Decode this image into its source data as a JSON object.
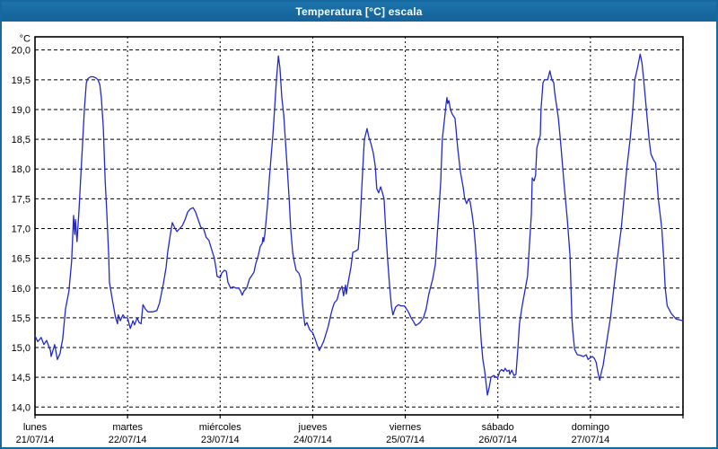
{
  "window_title": "Temperatura [°C] escala",
  "colors": {
    "titlebar": "#17689f",
    "line": "#2328cc",
    "grid": "#000000",
    "background": "#ffffff"
  },
  "chart_data": {
    "type": "line",
    "title": "Temperatura [°C] escala",
    "ylabel": "°C",
    "unit_label": "°C",
    "ylim": [
      14.0,
      20.0
    ],
    "ytick_step": 0.5,
    "ytick_labels": [
      "14,0",
      "14,5",
      "15,0",
      "15,5",
      "16,0",
      "16,5",
      "17,0",
      "17,5",
      "18,0",
      "18,5",
      "19,0",
      "19,5",
      "20,0"
    ],
    "grid": true,
    "legend_position": "none",
    "x_unit": "hours",
    "x_range_hours": [
      0,
      168
    ],
    "days": [
      {
        "name": "lunes",
        "date": "21/07/14"
      },
      {
        "name": "martes",
        "date": "22/07/14"
      },
      {
        "name": "miércoles",
        "date": "23/07/14"
      },
      {
        "name": "jueves",
        "date": "24/07/14"
      },
      {
        "name": "viernes",
        "date": "25/07/14"
      },
      {
        "name": "sábado",
        "date": "26/07/14"
      },
      {
        "name": "domingo",
        "date": "27/07/14"
      }
    ],
    "series": [
      {
        "name": "Temperatura",
        "points": [
          [
            0,
            15.2
          ],
          [
            0.7,
            15.1
          ],
          [
            1.6,
            15.17
          ],
          [
            2.3,
            15.05
          ],
          [
            3,
            15.12
          ],
          [
            4,
            14.95
          ],
          [
            4.2,
            14.85
          ],
          [
            5.1,
            15.05
          ],
          [
            5.8,
            14.8
          ],
          [
            6.5,
            14.9
          ],
          [
            7.2,
            15.15
          ],
          [
            7.9,
            15.65
          ],
          [
            8.8,
            15.95
          ],
          [
            9.5,
            16.45
          ],
          [
            10,
            17.22
          ],
          [
            10.3,
            16.9
          ],
          [
            10.5,
            17.15
          ],
          [
            10.9,
            16.78
          ],
          [
            11.4,
            17.3
          ],
          [
            11.9,
            17.9
          ],
          [
            12.3,
            18.4
          ],
          [
            12.8,
            19.0
          ],
          [
            13.3,
            19.45
          ],
          [
            13.7,
            19.52
          ],
          [
            14.4,
            19.55
          ],
          [
            15.1,
            19.55
          ],
          [
            15.8,
            19.53
          ],
          [
            16.3,
            19.5
          ],
          [
            16.8,
            19.42
          ],
          [
            17.2,
            19.2
          ],
          [
            17.7,
            18.7
          ],
          [
            18.2,
            17.8
          ],
          [
            18.6,
            17.3
          ],
          [
            19.1,
            16.55
          ],
          [
            19.3,
            16.1
          ],
          [
            19.8,
            15.9
          ],
          [
            20.2,
            15.75
          ],
          [
            20.9,
            15.5
          ],
          [
            21.4,
            15.4
          ],
          [
            21.6,
            15.55
          ],
          [
            22.1,
            15.45
          ],
          [
            22.8,
            15.55
          ],
          [
            23.3,
            15.5
          ],
          [
            24,
            15.5
          ],
          [
            24.7,
            15.32
          ],
          [
            25.4,
            15.45
          ],
          [
            25.8,
            15.38
          ],
          [
            26.5,
            15.5
          ],
          [
            27,
            15.42
          ],
          [
            27.5,
            15.4
          ],
          [
            28,
            15.72
          ],
          [
            28.6,
            15.65
          ],
          [
            29.3,
            15.6
          ],
          [
            30.5,
            15.6
          ],
          [
            31.6,
            15.62
          ],
          [
            32.3,
            15.75
          ],
          [
            33.3,
            16.08
          ],
          [
            34,
            16.35
          ],
          [
            34.4,
            16.6
          ],
          [
            35.1,
            16.9
          ],
          [
            35.6,
            17.1
          ],
          [
            36.3,
            17.0
          ],
          [
            36.8,
            16.95
          ],
          [
            37.5,
            17.0
          ],
          [
            38.2,
            17.05
          ],
          [
            38.9,
            17.15
          ],
          [
            39.6,
            17.28
          ],
          [
            40.3,
            17.33
          ],
          [
            41,
            17.35
          ],
          [
            41.6,
            17.28
          ],
          [
            42.3,
            17.15
          ],
          [
            43,
            17.02
          ],
          [
            43.7,
            17.0
          ],
          [
            44.4,
            16.85
          ],
          [
            45.1,
            16.8
          ],
          [
            45.8,
            16.65
          ],
          [
            46.5,
            16.5
          ],
          [
            47,
            16.3
          ],
          [
            47.2,
            16.2
          ],
          [
            48,
            16.17
          ],
          [
            48.4,
            16.25
          ],
          [
            49.1,
            16.3
          ],
          [
            49.6,
            16.28
          ],
          [
            50,
            16.1
          ],
          [
            50.7,
            16.0
          ],
          [
            51.4,
            16.02
          ],
          [
            52.1,
            16.0
          ],
          [
            52.8,
            16.0
          ],
          [
            53.3,
            15.95
          ],
          [
            53.7,
            15.88
          ],
          [
            54.2,
            15.95
          ],
          [
            54.9,
            16.0
          ],
          [
            55.6,
            16.15
          ],
          [
            56.3,
            16.22
          ],
          [
            56.8,
            16.27
          ],
          [
            57.2,
            16.4
          ],
          [
            57.9,
            16.55
          ],
          [
            58.4,
            16.7
          ],
          [
            58.9,
            16.75
          ],
          [
            59.1,
            16.85
          ],
          [
            59.3,
            16.78
          ],
          [
            59.6,
            16.9
          ],
          [
            60.3,
            17.4
          ],
          [
            60.7,
            17.8
          ],
          [
            61.2,
            18.2
          ],
          [
            61.7,
            18.6
          ],
          [
            62.1,
            19.0
          ],
          [
            62.6,
            19.5
          ],
          [
            63.1,
            19.9
          ],
          [
            63.5,
            19.7
          ],
          [
            64,
            19.2
          ],
          [
            64.5,
            18.9
          ],
          [
            64.9,
            18.5
          ],
          [
            65.4,
            18.0
          ],
          [
            65.9,
            17.5
          ],
          [
            66.3,
            17.0
          ],
          [
            66.8,
            16.6
          ],
          [
            67.2,
            16.45
          ],
          [
            67.7,
            16.3
          ],
          [
            68.4,
            16.25
          ],
          [
            68.9,
            16.16
          ],
          [
            69.3,
            15.77
          ],
          [
            69.6,
            15.57
          ],
          [
            70,
            15.37
          ],
          [
            70.5,
            15.42
          ],
          [
            71.2,
            15.3
          ],
          [
            72,
            15.25
          ],
          [
            72.6,
            15.15
          ],
          [
            73.1,
            15.05
          ],
          [
            73.7,
            14.95
          ],
          [
            74.1,
            15.0
          ],
          [
            74.8,
            15.1
          ],
          [
            75.3,
            15.2
          ],
          [
            76,
            15.35
          ],
          [
            76.7,
            15.55
          ],
          [
            77.1,
            15.65
          ],
          [
            77.6,
            15.75
          ],
          [
            78.3,
            15.8
          ],
          [
            78.9,
            15.95
          ],
          [
            79.6,
            16.03
          ],
          [
            80,
            15.87
          ],
          [
            80.5,
            16.05
          ],
          [
            80.7,
            15.9
          ],
          [
            81.2,
            16.1
          ],
          [
            81.9,
            16.35
          ],
          [
            82.4,
            16.6
          ],
          [
            83.1,
            16.62
          ],
          [
            83.8,
            16.65
          ],
          [
            84.2,
            17.0
          ],
          [
            84.7,
            17.65
          ],
          [
            85.1,
            18.15
          ],
          [
            85.4,
            18.5
          ],
          [
            86.1,
            18.68
          ],
          [
            86.5,
            18.55
          ],
          [
            87,
            18.45
          ],
          [
            87.7,
            18.27
          ],
          [
            88.2,
            18.05
          ],
          [
            88.6,
            17.67
          ],
          [
            89.1,
            17.6
          ],
          [
            89.6,
            17.7
          ],
          [
            90,
            17.62
          ],
          [
            90.5,
            17.5
          ],
          [
            90.9,
            17.0
          ],
          [
            91.4,
            16.5
          ],
          [
            91.9,
            16.05
          ],
          [
            92.4,
            15.7
          ],
          [
            92.8,
            15.55
          ],
          [
            93.5,
            15.68
          ],
          [
            94.2,
            15.72
          ],
          [
            94.9,
            15.7
          ],
          [
            95.7,
            15.7
          ],
          [
            96,
            15.68
          ],
          [
            96.8,
            15.6
          ],
          [
            97.5,
            15.5
          ],
          [
            98,
            15.45
          ],
          [
            98.7,
            15.37
          ],
          [
            99.4,
            15.4
          ],
          [
            99.8,
            15.42
          ],
          [
            100.7,
            15.5
          ],
          [
            101.4,
            15.65
          ],
          [
            102.1,
            15.9
          ],
          [
            103.1,
            16.15
          ],
          [
            103.8,
            16.4
          ],
          [
            104.2,
            16.8
          ],
          [
            104.7,
            17.3
          ],
          [
            105.2,
            17.8
          ],
          [
            105.6,
            18.5
          ],
          [
            106.1,
            18.8
          ],
          [
            106.6,
            19.1
          ],
          [
            106.8,
            19.2
          ],
          [
            107,
            19.1
          ],
          [
            107.3,
            19.15
          ],
          [
            107.7,
            19.0
          ],
          [
            108.2,
            18.92
          ],
          [
            108.9,
            18.85
          ],
          [
            109.6,
            18.35
          ],
          [
            110.3,
            17.95
          ],
          [
            111,
            17.7
          ],
          [
            111.4,
            17.5
          ],
          [
            111.9,
            17.42
          ],
          [
            112.4,
            17.5
          ],
          [
            112.8,
            17.45
          ],
          [
            113.3,
            17.25
          ],
          [
            113.8,
            17.0
          ],
          [
            114.2,
            16.7
          ],
          [
            114.7,
            16.2
          ],
          [
            115.2,
            15.6
          ],
          [
            115.7,
            15.1
          ],
          [
            116.1,
            14.8
          ],
          [
            116.6,
            14.6
          ],
          [
            117.3,
            14.2
          ],
          [
            117.8,
            14.35
          ],
          [
            118.2,
            14.5
          ],
          [
            118.9,
            14.53
          ],
          [
            119.6,
            14.5
          ],
          [
            120,
            14.5
          ],
          [
            120.5,
            14.6
          ],
          [
            121,
            14.63
          ],
          [
            121.5,
            14.6
          ],
          [
            121.9,
            14.65
          ],
          [
            122.4,
            14.6
          ],
          [
            122.9,
            14.62
          ],
          [
            123.1,
            14.55
          ],
          [
            123.6,
            14.62
          ],
          [
            124.2,
            14.53
          ],
          [
            124.7,
            14.55
          ],
          [
            125.2,
            15.0
          ],
          [
            125.6,
            15.4
          ],
          [
            126.3,
            15.7
          ],
          [
            127,
            15.95
          ],
          [
            127.7,
            16.2
          ],
          [
            128.2,
            16.75
          ],
          [
            128.7,
            17.25
          ],
          [
            128.9,
            17.85
          ],
          [
            129.4,
            17.8
          ],
          [
            129.8,
            17.9
          ],
          [
            130.1,
            18.35
          ],
          [
            131,
            18.57
          ],
          [
            131.2,
            19.0
          ],
          [
            131.7,
            19.45
          ],
          [
            132.1,
            19.5
          ],
          [
            132.9,
            19.5
          ],
          [
            133.5,
            19.65
          ],
          [
            134,
            19.5
          ],
          [
            134.5,
            19.45
          ],
          [
            134.7,
            19.3
          ],
          [
            135.7,
            18.85
          ],
          [
            136.4,
            18.35
          ],
          [
            137.1,
            17.8
          ],
          [
            138,
            17.15
          ],
          [
            138.7,
            16.55
          ],
          [
            139.2,
            15.5
          ],
          [
            139.4,
            15.3
          ],
          [
            139.9,
            14.97
          ],
          [
            140.6,
            14.88
          ],
          [
            141.3,
            14.87
          ],
          [
            142.2,
            14.85
          ],
          [
            142.9,
            14.88
          ],
          [
            143.4,
            14.8
          ],
          [
            144,
            14.83
          ],
          [
            144.5,
            14.85
          ],
          [
            145,
            14.82
          ],
          [
            145.5,
            14.75
          ],
          [
            145.9,
            14.6
          ],
          [
            146.4,
            14.45
          ],
          [
            146.9,
            14.6
          ],
          [
            147.3,
            14.7
          ],
          [
            148,
            15.0
          ],
          [
            148.7,
            15.3
          ],
          [
            149.2,
            15.5
          ],
          [
            149.9,
            15.9
          ],
          [
            150.6,
            16.3
          ],
          [
            151.3,
            16.65
          ],
          [
            152,
            17.0
          ],
          [
            152.7,
            17.5
          ],
          [
            153.4,
            18.0
          ],
          [
            154.3,
            18.5
          ],
          [
            155,
            19.0
          ],
          [
            155.5,
            19.5
          ],
          [
            156.2,
            19.7
          ],
          [
            156.9,
            19.93
          ],
          [
            157.4,
            19.77
          ],
          [
            157.8,
            19.5
          ],
          [
            158.5,
            19.0
          ],
          [
            159.2,
            18.5
          ],
          [
            159.7,
            18.25
          ],
          [
            160.4,
            18.15
          ],
          [
            160.9,
            18.1
          ],
          [
            161.6,
            17.5
          ],
          [
            162.5,
            17.0
          ],
          [
            163,
            16.5
          ],
          [
            163.4,
            16.0
          ],
          [
            163.9,
            15.7
          ],
          [
            165,
            15.57
          ],
          [
            166.2,
            15.48
          ],
          [
            167.4,
            15.46
          ],
          [
            168,
            15.45
          ]
        ]
      }
    ]
  }
}
